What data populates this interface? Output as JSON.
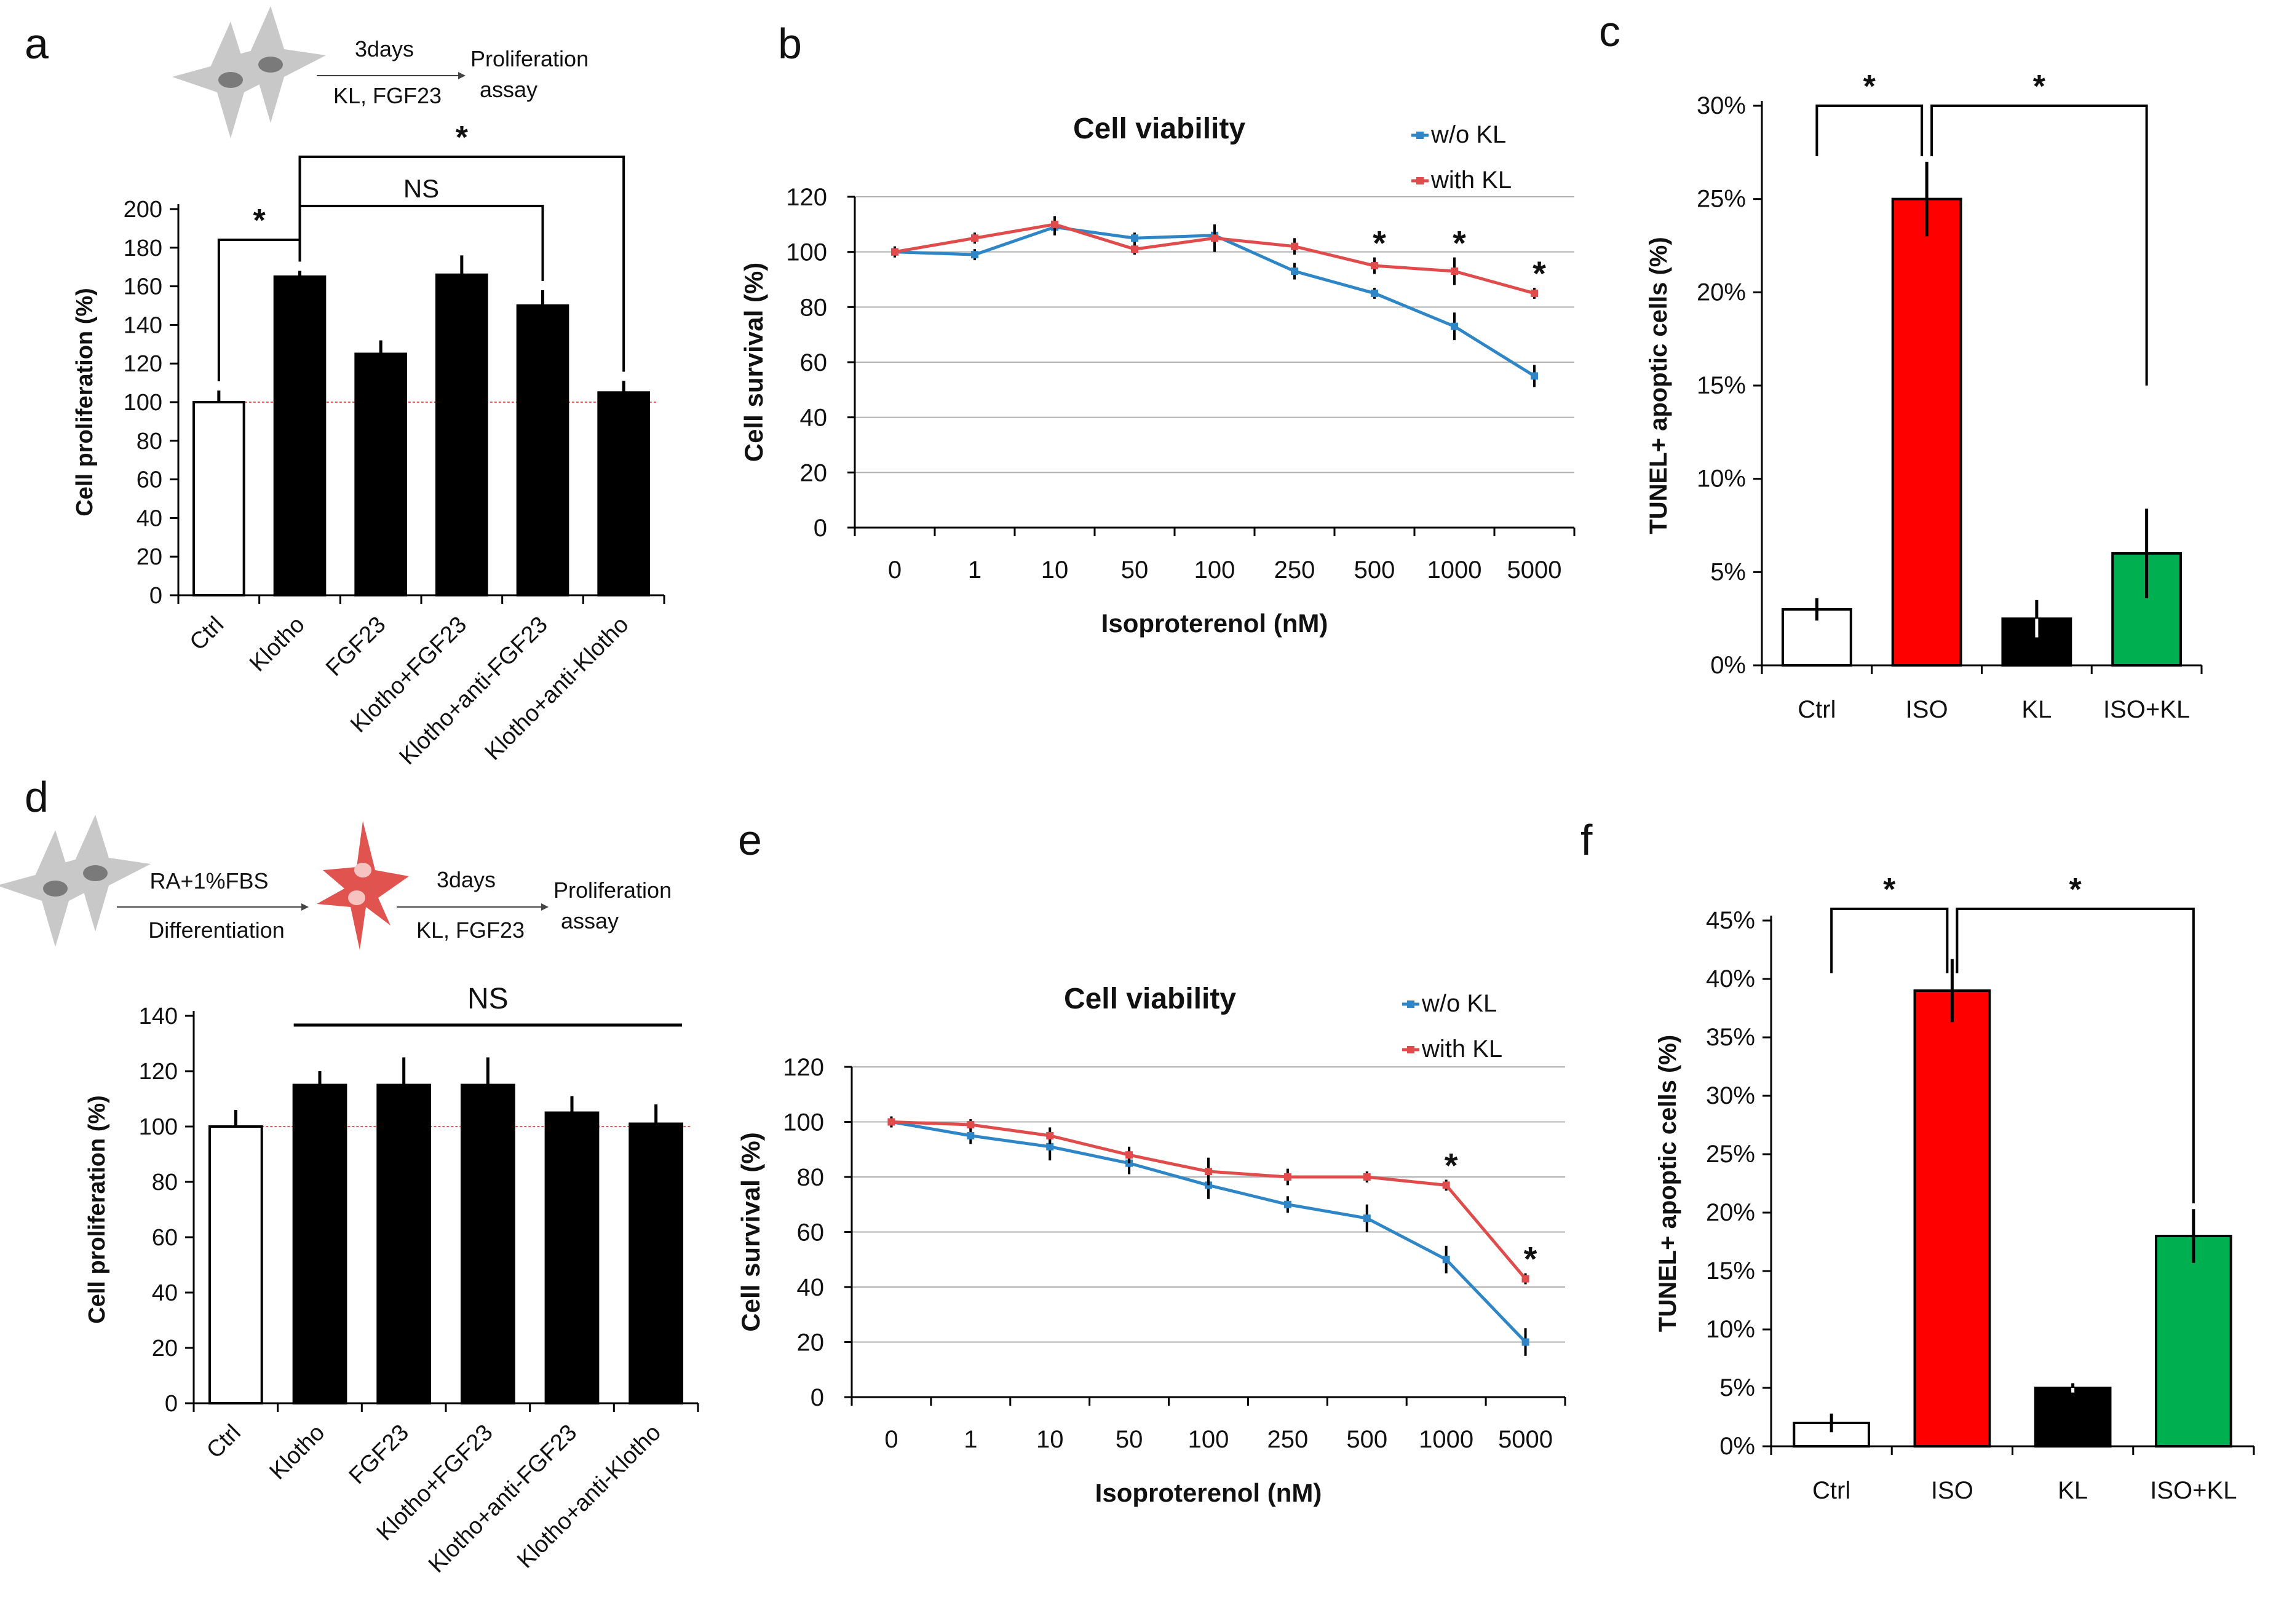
{
  "chart_data": [
    {
      "panel": "a",
      "type": "bar",
      "categories": [
        "Ctrl",
        "Klotho",
        "FGF23",
        "Klotho+FGF23",
        "Klotho+anti-FGF23",
        "Klotho+anti-Klotho"
      ],
      "values": [
        100,
        165,
        125,
        166,
        150,
        105
      ],
      "errors": [
        6,
        3,
        7,
        10,
        8,
        6
      ],
      "colors": [
        "#ffffff",
        "#000000",
        "#000000",
        "#000000",
        "#000000",
        "#000000"
      ],
      "ylabel": "Cell proliferation (%)",
      "ylim": [
        0,
        200
      ],
      "yticks": [
        "0",
        "20",
        "40",
        "60",
        "80",
        "100",
        "120",
        "140",
        "160",
        "180",
        "200"
      ],
      "reference_line": 100,
      "schematic": {
        "days": "3days",
        "treatment": "KL, FGF23",
        "result": "Proliferation assay"
      },
      "significance": [
        {
          "from": 0,
          "to": 1,
          "label": "*"
        },
        {
          "from": 1,
          "to": 4,
          "label": "NS"
        },
        {
          "from": 1,
          "to": 5,
          "label": "*"
        }
      ]
    },
    {
      "panel": "b",
      "type": "line",
      "title": "Cell viability",
      "categories": [
        "0",
        "1",
        "10",
        "50",
        "100",
        "250",
        "500",
        "1000",
        "5000"
      ],
      "series": [
        {
          "name": "w/o KL",
          "color": "#2f86c6",
          "values": [
            100,
            99,
            109,
            105,
            106,
            93,
            85,
            73,
            55
          ],
          "errors": [
            2,
            2,
            3,
            2,
            3,
            3,
            2,
            5,
            4
          ]
        },
        {
          "name": "with KL",
          "color": "#e04b4b",
          "values": [
            100,
            105,
            110,
            101,
            105,
            102,
            95,
            93,
            85
          ],
          "errors": [
            2,
            2,
            3,
            2,
            5,
            3,
            3,
            5,
            2
          ]
        }
      ],
      "xlabel": "Isoproterenol (nM)",
      "ylabel": "Cell survival (%)",
      "ylim": [
        0,
        120
      ],
      "yticks": [
        "0",
        "20",
        "40",
        "60",
        "80",
        "100",
        "120"
      ],
      "significant_points": [
        6,
        7,
        8
      ],
      "star": "*"
    },
    {
      "panel": "c",
      "type": "bar",
      "categories": [
        "Ctrl",
        "ISO",
        "KL",
        "ISO+KL"
      ],
      "values": [
        3,
        25,
        2.5,
        6
      ],
      "errors": [
        0.6,
        2,
        1,
        2.4
      ],
      "colors": [
        "#ffffff",
        "#ff0000",
        "#000000",
        "#00b050"
      ],
      "ylabel": "TUNEL+ apoptic cells (%)",
      "ylim": [
        0,
        30
      ],
      "yticks": [
        "0%",
        "5%",
        "10%",
        "15%",
        "20%",
        "25%",
        "30%"
      ],
      "significance": [
        {
          "from": 0,
          "to": 1,
          "label": "*"
        },
        {
          "from": 1,
          "to": 3,
          "label": "*"
        }
      ]
    },
    {
      "panel": "d",
      "type": "bar",
      "categories": [
        "Ctrl",
        "Klotho",
        "FGF23",
        "Klotho+FGF23",
        "Klotho+anti-FGF23",
        "Klotho+anti-Klotho"
      ],
      "values": [
        100,
        115,
        115,
        115,
        105,
        101
      ],
      "errors": [
        6,
        5,
        10,
        10,
        6,
        7
      ],
      "colors": [
        "#ffffff",
        "#000000",
        "#000000",
        "#000000",
        "#000000",
        "#000000"
      ],
      "ylabel": "Cell proliferation (%)",
      "ylim": [
        0,
        140
      ],
      "yticks": [
        "0",
        "20",
        "40",
        "60",
        "80",
        "100",
        "120",
        "140"
      ],
      "reference_line": 100,
      "schematic": {
        "medium": "RA+1%FBS",
        "step1": "Differentiation",
        "days": "3days",
        "treatment": "KL, FGF23",
        "result": "Proliferation assay"
      },
      "significance": [
        {
          "from": 1,
          "to": 5,
          "label": "NS"
        }
      ]
    },
    {
      "panel": "e",
      "type": "line",
      "title": "Cell viability",
      "categories": [
        "0",
        "1",
        "10",
        "50",
        "100",
        "250",
        "500",
        "1000",
        "5000"
      ],
      "series": [
        {
          "name": "w/o KL",
          "color": "#2f86c6",
          "values": [
            100,
            95,
            91,
            85,
            77,
            70,
            65,
            50,
            20
          ],
          "errors": [
            2,
            3,
            5,
            4,
            5,
            3,
            5,
            5,
            5
          ]
        },
        {
          "name": "with KL",
          "color": "#e04b4b",
          "values": [
            100,
            99,
            95,
            88,
            82,
            80,
            80,
            77,
            43
          ],
          "errors": [
            2,
            2,
            3,
            3,
            5,
            3,
            2,
            2,
            2
          ]
        }
      ],
      "xlabel": "Isoproterenol (nM)",
      "ylabel": "Cell survival (%)",
      "ylim": [
        0,
        120
      ],
      "yticks": [
        "0",
        "20",
        "40",
        "60",
        "80",
        "100",
        "120"
      ],
      "significant_points": [
        7,
        8
      ],
      "star": "*"
    },
    {
      "panel": "f",
      "type": "bar",
      "categories": [
        "Ctrl",
        "ISO",
        "KL",
        "ISO+KL"
      ],
      "values": [
        2,
        39,
        5,
        18
      ],
      "errors": [
        0.8,
        2.7,
        0.4,
        2.3
      ],
      "colors": [
        "#ffffff",
        "#ff0000",
        "#000000",
        "#00b050"
      ],
      "ylabel": "TUNEL+ apoptic cells (%)",
      "ylim": [
        0,
        45
      ],
      "yticks": [
        "0%",
        "5%",
        "10%",
        "15%",
        "20%",
        "25%",
        "30%",
        "35%",
        "40%",
        "45%"
      ],
      "significance": [
        {
          "from": 0,
          "to": 1,
          "label": "*"
        },
        {
          "from": 1,
          "to": 3,
          "label": "*"
        }
      ]
    }
  ]
}
